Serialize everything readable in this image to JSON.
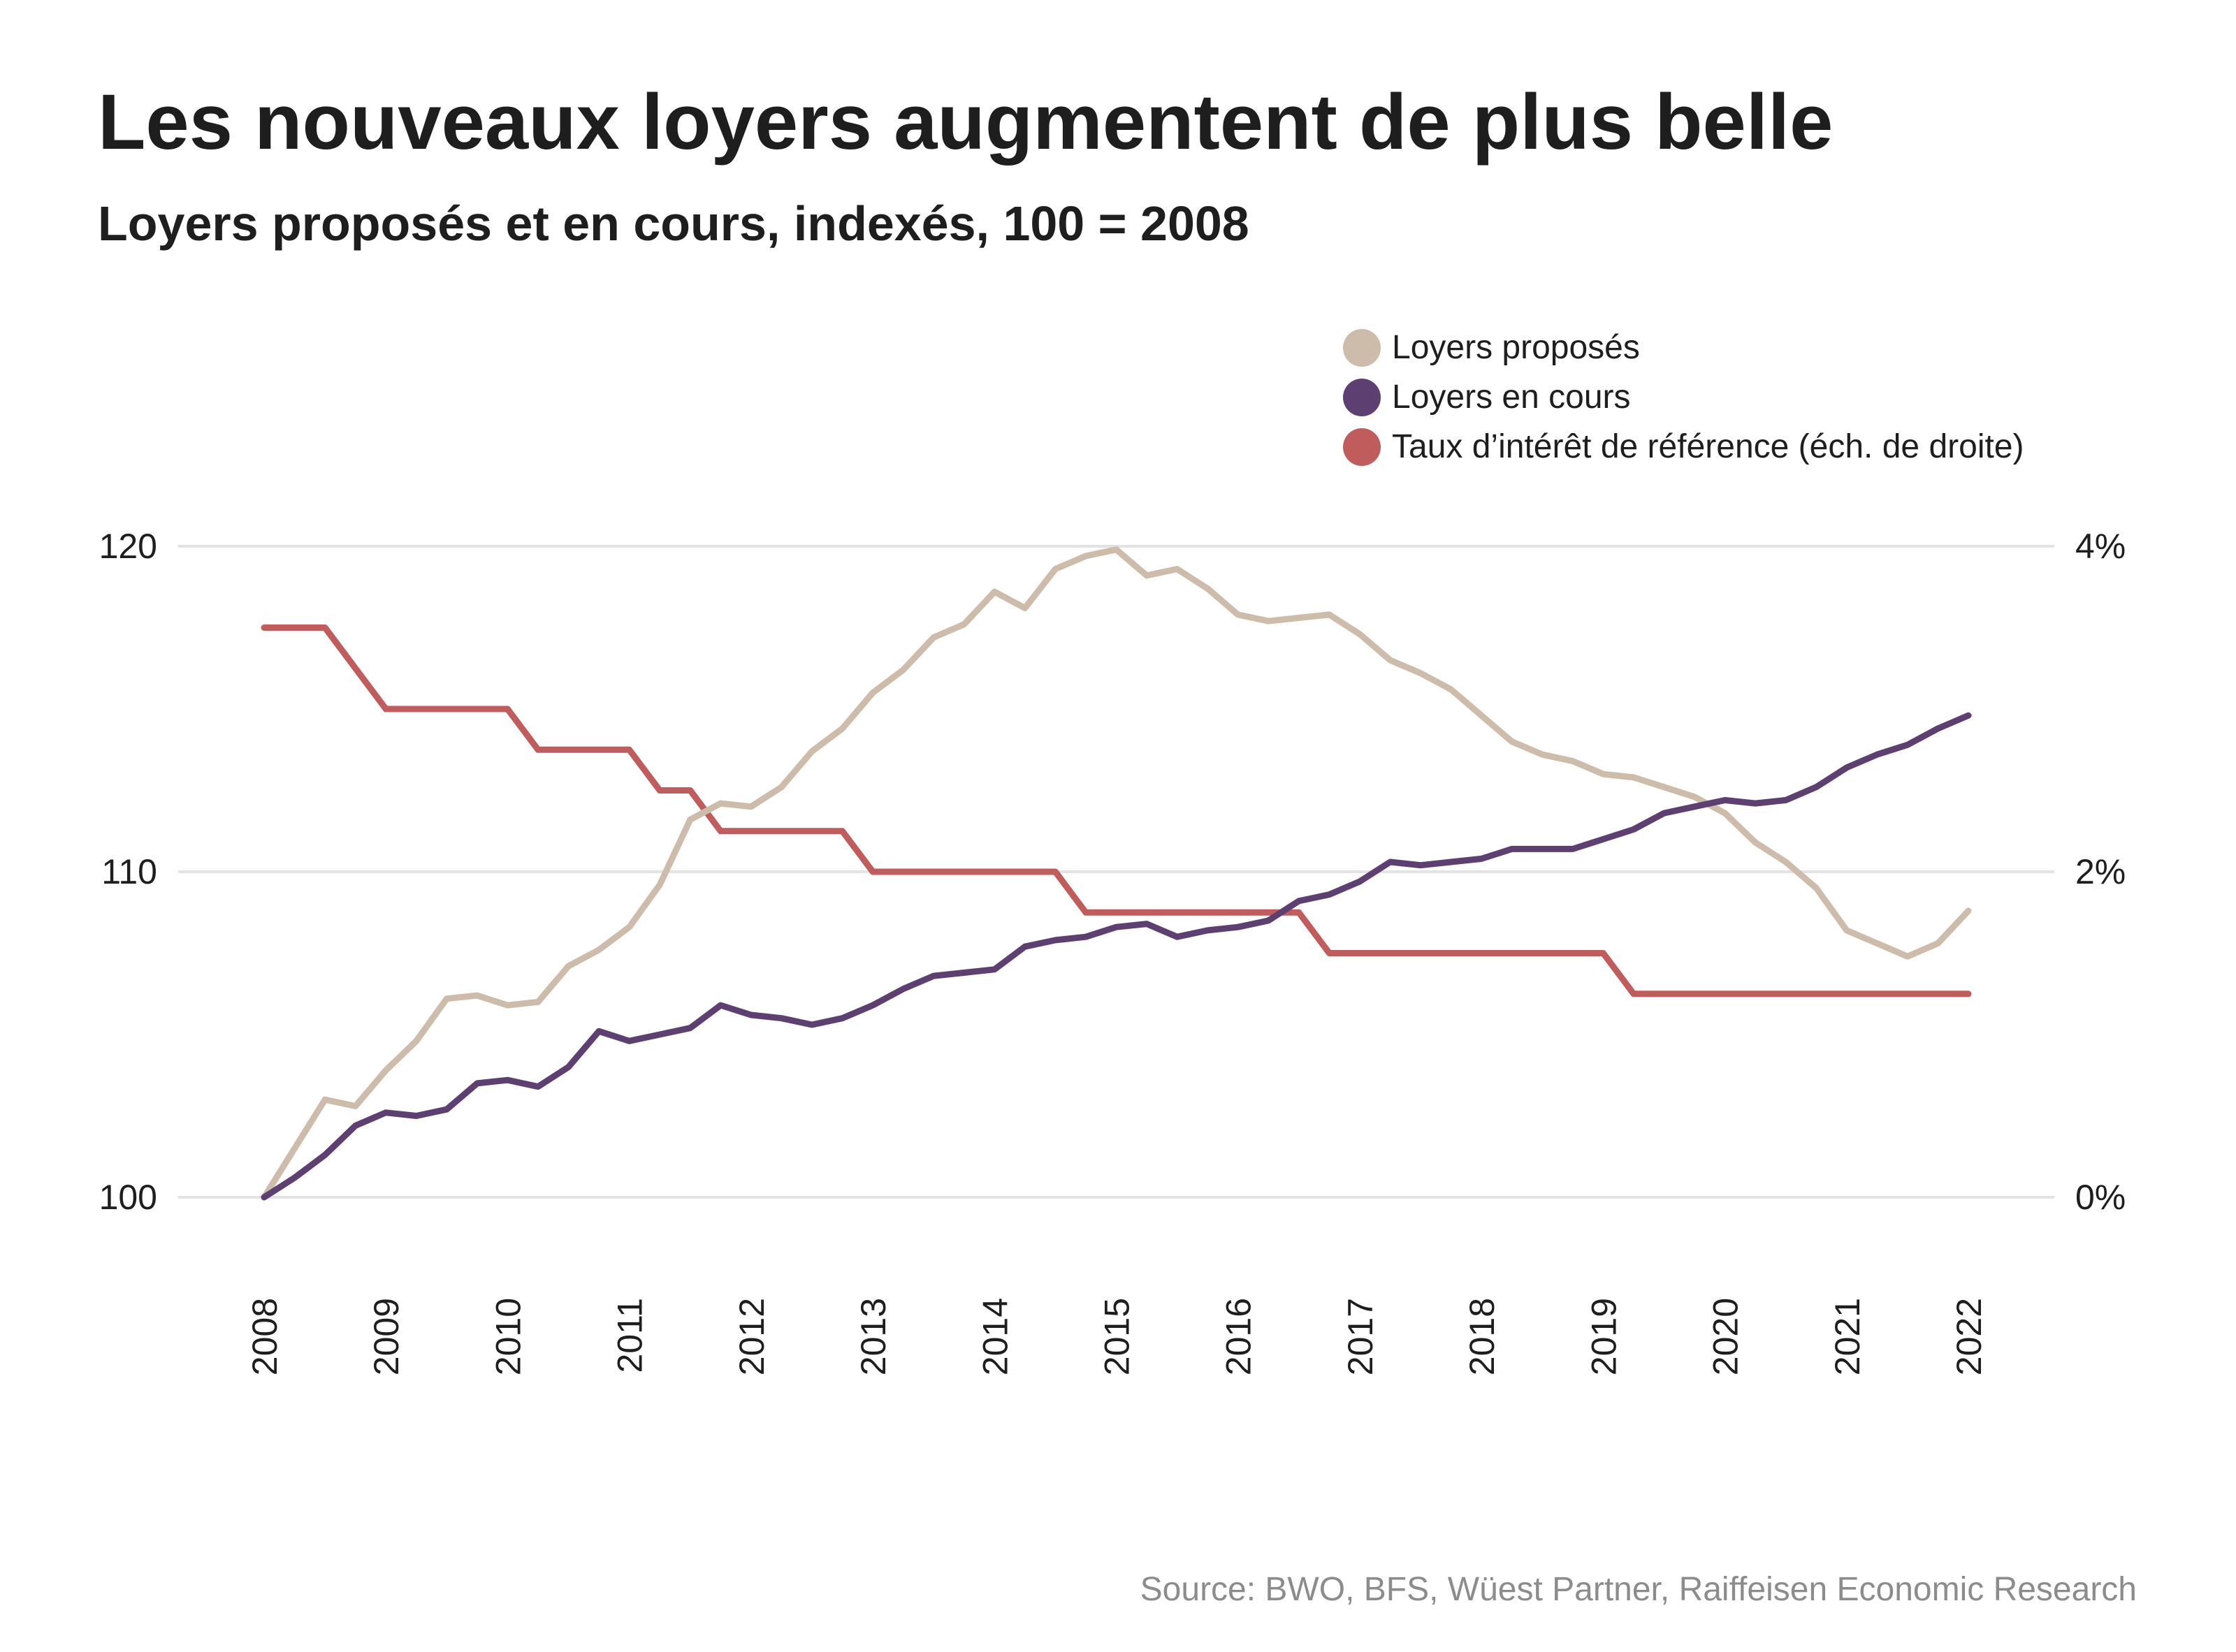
{
  "title": "Les nouveaux loyers augmentent de plus belle",
  "subtitle": "Loyers proposés et en cours, indexés, 100 = 2008",
  "source": "Source: BWO, BFS, Wüest Partner, Raiffeisen Economic Research",
  "chart_data": {
    "type": "line",
    "title": "Les nouveaux loyers augmentent de plus belle",
    "subtitle": "Loyers proposés et en cours, indexés, 100 = 2008",
    "x_start": "2008",
    "x_end": "2022",
    "x_frequency": "quarterly",
    "x_ticks": [
      "2008",
      "2009",
      "2010",
      "2011",
      "2012",
      "2013",
      "2014",
      "2015",
      "2016",
      "2017",
      "2018",
      "2019",
      "2020",
      "2021",
      "2022"
    ],
    "ylim": [
      100,
      120
    ],
    "y_ticks": [
      "100",
      "110",
      "120"
    ],
    "y2lim": [
      0,
      4
    ],
    "y2_ticks": [
      "0%",
      "2%",
      "4%"
    ],
    "grid": true,
    "legend_position": "top-right",
    "series": [
      {
        "name": "Loyers proposés",
        "axis": "left",
        "color": "#cdbcaa",
        "values": [
          100,
          101.5,
          103,
          102.8,
          103.9,
          104.8,
          106.1,
          106.2,
          105.9,
          106.0,
          107.1,
          107.6,
          108.3,
          109.6,
          111.6,
          112.1,
          112.0,
          112.6,
          113.7,
          114.4,
          115.5,
          116.2,
          117.2,
          117.6,
          118.6,
          118.1,
          119.3,
          119.7,
          119.9,
          119.1,
          119.3,
          118.7,
          117.9,
          117.7,
          117.8,
          117.9,
          117.3,
          116.5,
          116.1,
          115.6,
          114.8,
          114.0,
          113.6,
          113.4,
          113.0,
          112.9,
          112.6,
          112.3,
          111.8,
          110.9,
          110.3,
          109.5,
          108.2,
          107.8,
          107.4,
          107.8,
          108.8
        ]
      },
      {
        "name": "Loyers en cours",
        "axis": "left",
        "color": "#5e3f72",
        "values": [
          100,
          100.6,
          101.3,
          102.2,
          102.6,
          102.5,
          102.7,
          103.5,
          103.6,
          103.4,
          104.0,
          105.1,
          104.8,
          105.0,
          105.2,
          105.9,
          105.6,
          105.5,
          105.3,
          105.5,
          105.9,
          106.4,
          106.8,
          106.9,
          107.0,
          107.7,
          107.9,
          108.0,
          108.3,
          108.4,
          108.0,
          108.2,
          108.3,
          108.5,
          109.1,
          109.3,
          109.7,
          110.3,
          110.2,
          110.3,
          110.4,
          110.7,
          110.7,
          110.7,
          111.0,
          111.3,
          111.8,
          112.0,
          112.2,
          112.1,
          112.2,
          112.6,
          113.2,
          113.6,
          113.9,
          114.4,
          114.8
        ]
      },
      {
        "name": "Taux d’intérêt de référence (éch. de droite)",
        "axis": "right",
        "color": "#c15c5c",
        "values": [
          3.5,
          3.5,
          3.5,
          3.25,
          3,
          3,
          3,
          3,
          3,
          2.75,
          2.75,
          2.75,
          2.75,
          2.5,
          2.5,
          2.25,
          2.25,
          2.25,
          2.25,
          2.25,
          2,
          2,
          2,
          2,
          2,
          2,
          2,
          1.75,
          1.75,
          1.75,
          1.75,
          1.75,
          1.75,
          1.75,
          1.75,
          1.5,
          1.5,
          1.5,
          1.5,
          1.5,
          1.5,
          1.5,
          1.5,
          1.5,
          1.5,
          1.25,
          1.25,
          1.25,
          1.25,
          1.25,
          1.25,
          1.25,
          1.25,
          1.25,
          1.25,
          1.25,
          1.25
        ]
      }
    ]
  }
}
